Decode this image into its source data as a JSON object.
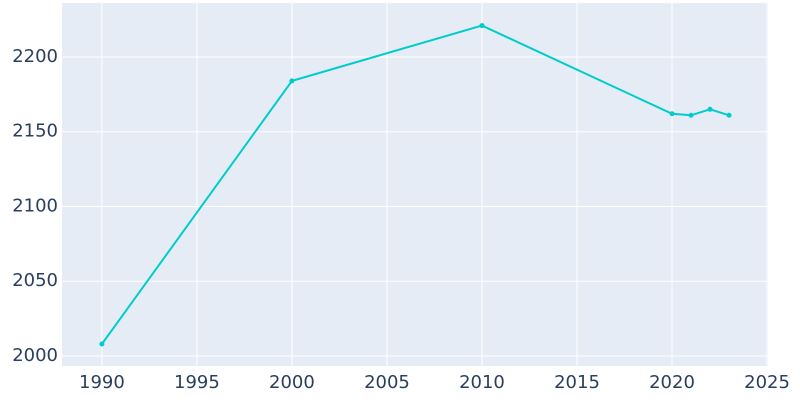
{
  "chart_data": {
    "type": "line",
    "x": [
      1990,
      2000,
      2010,
      2020,
      2021,
      2022,
      2023
    ],
    "series": [
      {
        "color": "#00cccc",
        "values": [
          2008,
          2184,
          2221,
          2162,
          2161,
          2165,
          2161
        ]
      }
    ],
    "xlim": [
      1987.9,
      2025.05
    ],
    "xticks": [
      1990,
      1995,
      2000,
      2005,
      2010,
      2015,
      2020,
      2025
    ],
    "ylim": [
      1993.3,
      2236.1
    ],
    "yticks": [
      2000,
      2050,
      2100,
      2150,
      2200
    ],
    "grid": true,
    "background": "#e5ecf6"
  }
}
